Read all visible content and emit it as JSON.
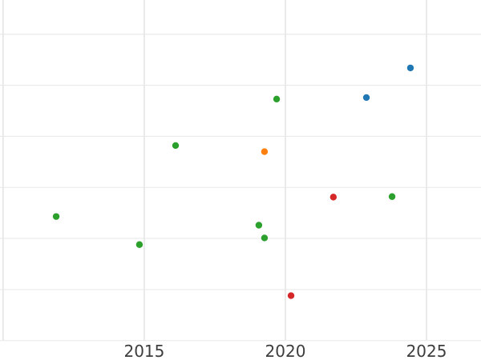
{
  "chart_data": {
    "type": "scatter",
    "title": "",
    "xlabel": "",
    "ylabel": "",
    "x_tick_labels": [
      "2015",
      "2020",
      "2025"
    ],
    "x_tick_years": [
      2015,
      2020,
      2025
    ],
    "x_gridline_years": [
      2010,
      2015,
      2020,
      2025
    ],
    "y_gridline_values": [
      0,
      1,
      2,
      3,
      4,
      5,
      6
    ],
    "x_range_years": [
      2009.89,
      2026.93
    ],
    "y_range_values": [
      -0.38,
      6.67
    ],
    "grid": true,
    "legend_visible": false,
    "y_tick_labels_visible": false,
    "series": [
      {
        "name": "blue",
        "color": "#1f77b4",
        "points": [
          {
            "x": 2022.87,
            "y": 4.76
          },
          {
            "x": 2024.43,
            "y": 5.34
          }
        ]
      },
      {
        "name": "orange",
        "color": "#ff7f0e",
        "points": [
          {
            "x": 2019.26,
            "y": 3.7
          }
        ]
      },
      {
        "name": "green",
        "color": "#2ca02c",
        "points": [
          {
            "x": 2011.88,
            "y": 2.43
          },
          {
            "x": 2014.83,
            "y": 1.88
          },
          {
            "x": 2016.11,
            "y": 3.82
          },
          {
            "x": 2019.06,
            "y": 2.26
          },
          {
            "x": 2019.26,
            "y": 2.01
          },
          {
            "x": 2019.69,
            "y": 4.73
          },
          {
            "x": 2023.78,
            "y": 2.82
          }
        ]
      },
      {
        "name": "red",
        "color": "#d62728",
        "points": [
          {
            "x": 2020.2,
            "y": 0.88
          },
          {
            "x": 2021.7,
            "y": 2.81
          }
        ]
      }
    ]
  },
  "style": {
    "background_color": "#ffffff",
    "horizontal_gridline_color": "#e9e9e9",
    "vertical_gridline_color": "#e5e5e5",
    "tick_label_color": "#3d3d3d",
    "point_radius": 4.2
  }
}
